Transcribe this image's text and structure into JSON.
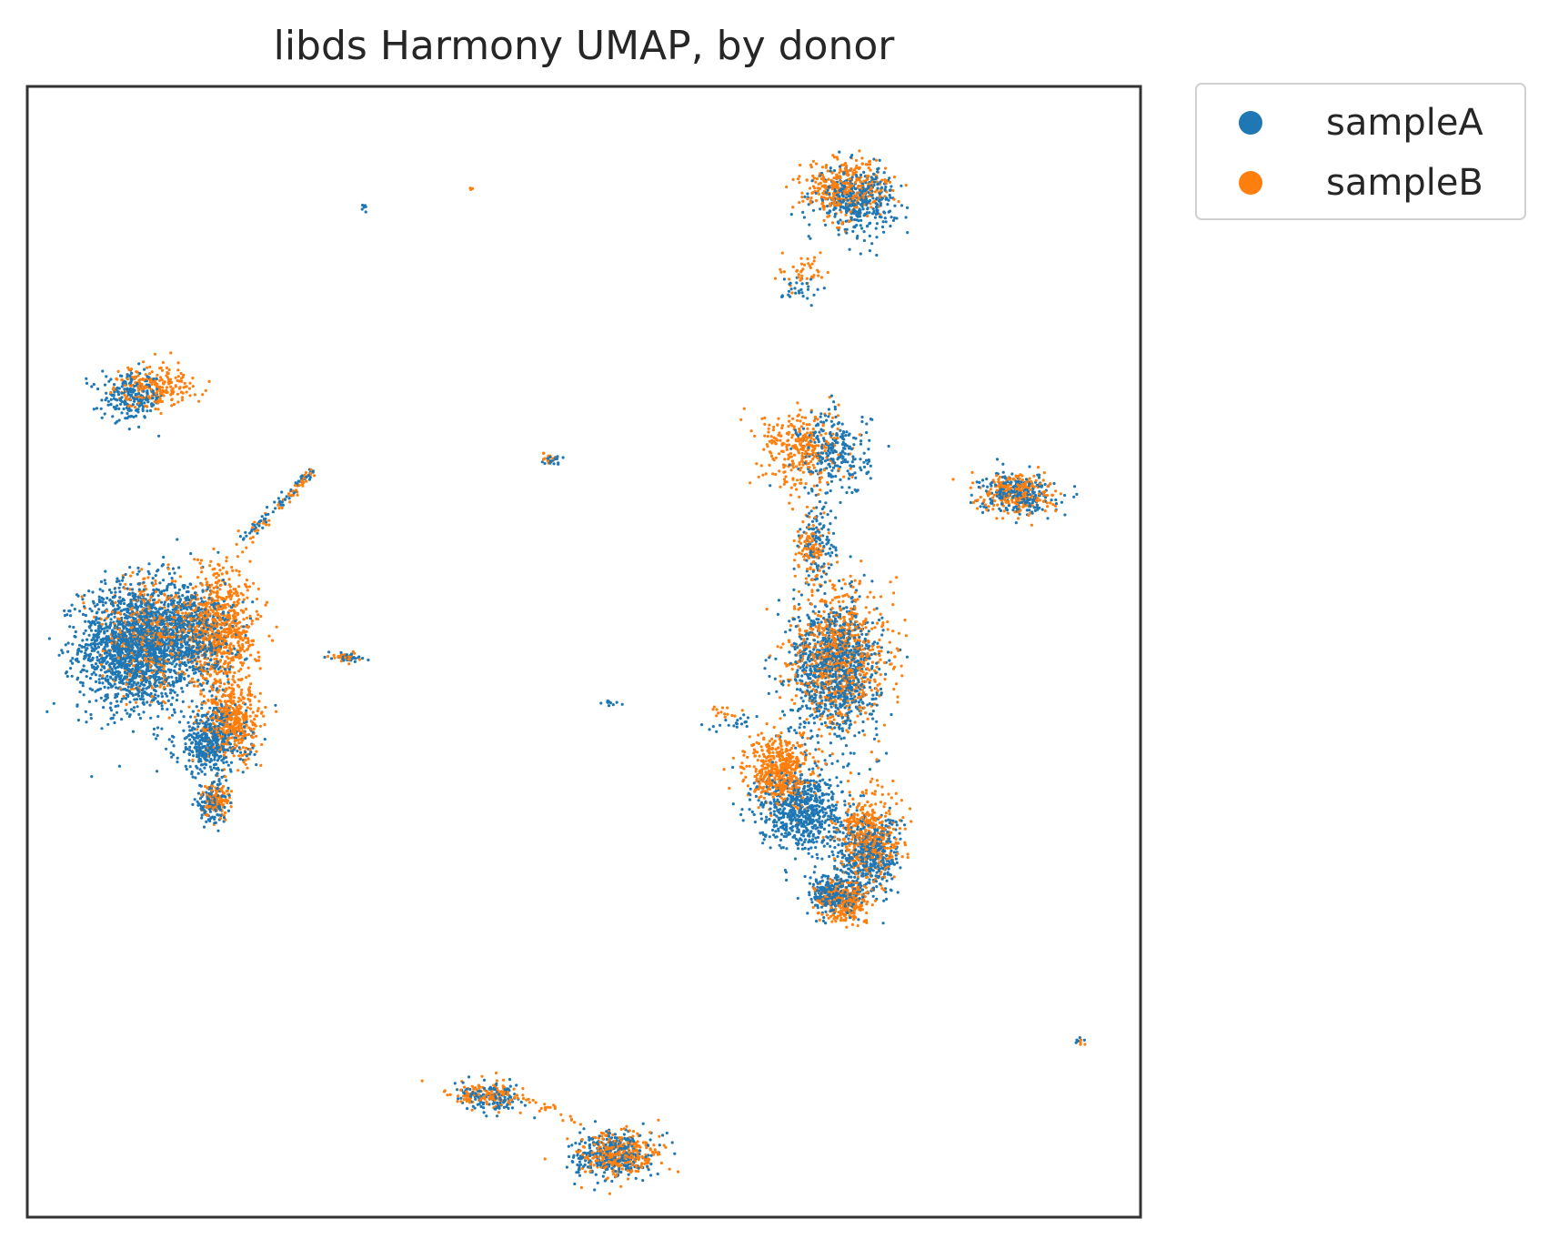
{
  "chart_data": {
    "type": "scatter",
    "title": "libds Harmony UMAP, by donor",
    "xlabel": "",
    "ylabel": "",
    "xlim": [
      0,
      100
    ],
    "ylim": [
      0,
      100
    ],
    "ticks": "none",
    "grid": false,
    "legend_position": "outside-top-right",
    "colors": {
      "sampleA": "#1f77b4",
      "sampleB": "#ff7f0e",
      "frame": "#333333"
    },
    "series": [
      {
        "name": "sampleA",
        "color": "#1f77b4",
        "clusters": [
          {
            "cx": 9.5,
            "cy": 50.5,
            "rx": 4.8,
            "ry": 5.5,
            "n": 1600
          },
          {
            "cx": 14.5,
            "cy": 51.5,
            "rx": 4.0,
            "ry": 5.0,
            "n": 700
          },
          {
            "cx": 16.5,
            "cy": 42.0,
            "rx": 3.2,
            "ry": 3.0,
            "n": 450
          },
          {
            "cx": 16.5,
            "cy": 36.5,
            "rx": 1.5,
            "ry": 1.5,
            "n": 120
          },
          {
            "cx": 9.5,
            "cy": 72.5,
            "rx": 2.8,
            "ry": 2.0,
            "n": 240
          },
          {
            "cx": 74.5,
            "cy": 90.0,
            "rx": 3.5,
            "ry": 2.8,
            "n": 380
          },
          {
            "cx": 69.5,
            "cy": 82.0,
            "rx": 1.6,
            "ry": 1.4,
            "n": 30
          },
          {
            "cx": 72.5,
            "cy": 67.5,
            "rx": 3.2,
            "ry": 3.8,
            "n": 260
          },
          {
            "cx": 71.0,
            "cy": 59.5,
            "rx": 1.6,
            "ry": 3.5,
            "n": 110
          },
          {
            "cx": 72.5,
            "cy": 48.5,
            "rx": 4.0,
            "ry": 6.0,
            "n": 950
          },
          {
            "cx": 69.5,
            "cy": 36.0,
            "rx": 3.8,
            "ry": 3.5,
            "n": 650
          },
          {
            "cx": 75.5,
            "cy": 32.0,
            "rx": 2.8,
            "ry": 3.5,
            "n": 450
          },
          {
            "cx": 72.5,
            "cy": 28.5,
            "rx": 2.2,
            "ry": 1.8,
            "n": 280
          },
          {
            "cx": 89.0,
            "cy": 64.0,
            "rx": 3.2,
            "ry": 1.8,
            "n": 260
          },
          {
            "cx": 41.5,
            "cy": 10.5,
            "rx": 3.0,
            "ry": 1.2,
            "n": 130
          },
          {
            "cx": 52.5,
            "cy": 5.5,
            "rx": 3.5,
            "ry": 2.0,
            "n": 320
          },
          {
            "cx": 47.0,
            "cy": 67.0,
            "rx": 0.8,
            "ry": 0.6,
            "n": 20
          },
          {
            "cx": 29.0,
            "cy": 49.5,
            "rx": 1.4,
            "ry": 0.5,
            "n": 30
          },
          {
            "cx": 52.5,
            "cy": 45.5,
            "rx": 1.0,
            "ry": 0.3,
            "n": 10
          },
          {
            "cx": 30.2,
            "cy": 89.3,
            "rx": 0.4,
            "ry": 0.4,
            "n": 6
          },
          {
            "cx": 94.5,
            "cy": 15.5,
            "rx": 0.5,
            "ry": 0.4,
            "n": 6
          }
        ]
      },
      {
        "name": "sampleB",
        "color": "#ff7f0e",
        "clusters": [
          {
            "cx": 17.5,
            "cy": 52.0,
            "rx": 3.2,
            "ry": 5.5,
            "n": 700
          },
          {
            "cx": 11.0,
            "cy": 51.5,
            "rx": 4.5,
            "ry": 5.0,
            "n": 450
          },
          {
            "cx": 18.5,
            "cy": 43.5,
            "rx": 2.5,
            "ry": 3.2,
            "n": 420
          },
          {
            "cx": 17.0,
            "cy": 37.0,
            "rx": 1.4,
            "ry": 1.5,
            "n": 110
          },
          {
            "cx": 11.5,
            "cy": 73.5,
            "rx": 3.5,
            "ry": 1.8,
            "n": 220
          },
          {
            "cx": 73.5,
            "cy": 91.0,
            "rx": 3.8,
            "ry": 2.5,
            "n": 380
          },
          {
            "cx": 70.0,
            "cy": 83.5,
            "rx": 1.8,
            "ry": 1.5,
            "n": 40
          },
          {
            "cx": 69.5,
            "cy": 68.0,
            "rx": 3.6,
            "ry": 3.5,
            "n": 300
          },
          {
            "cx": 70.5,
            "cy": 59.0,
            "rx": 1.5,
            "ry": 3.2,
            "n": 110
          },
          {
            "cx": 73.0,
            "cy": 49.5,
            "rx": 4.2,
            "ry": 6.0,
            "n": 750
          },
          {
            "cx": 67.5,
            "cy": 39.5,
            "rx": 2.8,
            "ry": 3.0,
            "n": 500
          },
          {
            "cx": 75.5,
            "cy": 33.5,
            "rx": 2.8,
            "ry": 3.8,
            "n": 420
          },
          {
            "cx": 73.5,
            "cy": 28.0,
            "rx": 2.2,
            "ry": 1.8,
            "n": 280
          },
          {
            "cx": 89.0,
            "cy": 64.0,
            "rx": 3.2,
            "ry": 1.8,
            "n": 240
          },
          {
            "cx": 41.0,
            "cy": 10.8,
            "rx": 3.2,
            "ry": 1.2,
            "n": 140
          },
          {
            "cx": 53.0,
            "cy": 5.5,
            "rx": 3.5,
            "ry": 2.0,
            "n": 320
          },
          {
            "cx": 47.0,
            "cy": 67.0,
            "rx": 0.8,
            "ry": 0.6,
            "n": 14
          },
          {
            "cx": 28.5,
            "cy": 49.5,
            "rx": 1.5,
            "ry": 0.5,
            "n": 30
          },
          {
            "cx": 62.5,
            "cy": 44.5,
            "rx": 1.8,
            "ry": 0.6,
            "n": 14
          },
          {
            "cx": 39.9,
            "cy": 90.9,
            "rx": 0.2,
            "ry": 0.2,
            "n": 3
          },
          {
            "cx": 94.5,
            "cy": 15.5,
            "rx": 0.5,
            "ry": 0.4,
            "n": 4
          }
        ]
      }
    ],
    "streaks": [
      {
        "series": "sampleA",
        "x1": 19.5,
        "y1": 60.0,
        "x2": 25.5,
        "y2": 66.0,
        "n": 70
      },
      {
        "series": "sampleB",
        "x1": 20.0,
        "y1": 60.2,
        "x2": 25.5,
        "y2": 66.0,
        "n": 50
      },
      {
        "series": "sampleA",
        "x1": 65.5,
        "y1": 44.0,
        "x2": 60.0,
        "y2": 43.0,
        "n": 20
      },
      {
        "series": "sampleB",
        "x1": 44.0,
        "y1": 11.0,
        "x2": 50.0,
        "y2": 8.0,
        "n": 25
      }
    ],
    "legend": [
      {
        "label": "sampleA",
        "color": "#1f77b4"
      },
      {
        "label": "sampleB",
        "color": "#ff7f0e"
      }
    ]
  }
}
